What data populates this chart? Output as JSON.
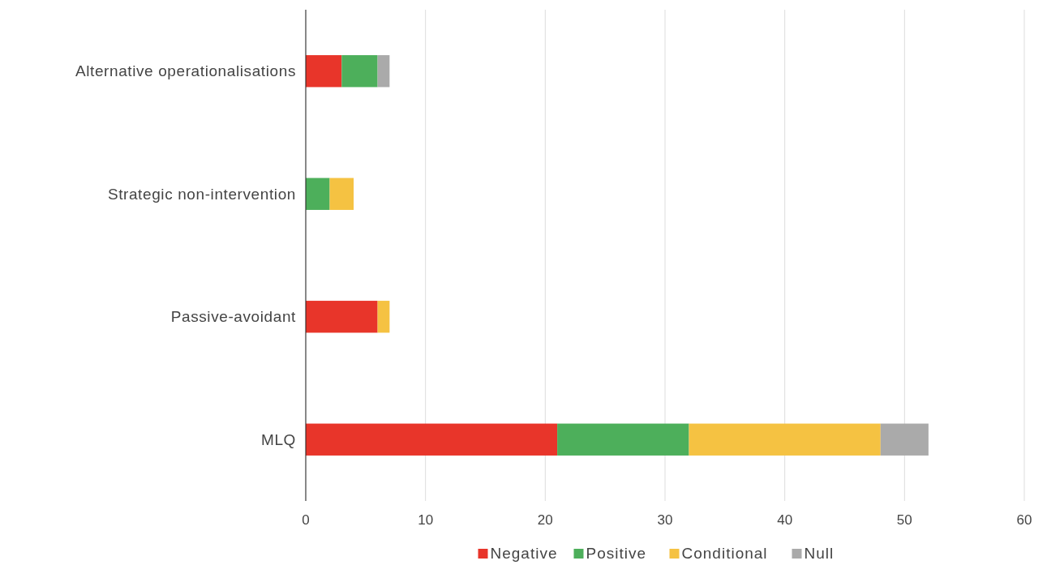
{
  "chart_data": {
    "type": "bar",
    "orientation": "horizontal",
    "stacked": true,
    "categories": [
      "Alternative operationalisations",
      "Strategic non-intervention",
      "Passive-avoidant",
      "MLQ"
    ],
    "series": [
      {
        "name": "Negative",
        "color": "#e8352a",
        "values": [
          3,
          null,
          6,
          21
        ]
      },
      {
        "name": "Positive",
        "color": "#4daf5b",
        "values": [
          3,
          2,
          null,
          11
        ]
      },
      {
        "name": "Conditional",
        "color": "#f5c242",
        "values": [
          null,
          2,
          1,
          16
        ]
      },
      {
        "name": "Null",
        "color": "#aaaaaa",
        "values": [
          1,
          null,
          null,
          4
        ]
      }
    ],
    "xlim": [
      0,
      60
    ],
    "xticks": [
      0,
      10,
      20,
      30,
      40,
      50,
      60
    ],
    "grid": "x",
    "legend": "bottom"
  }
}
